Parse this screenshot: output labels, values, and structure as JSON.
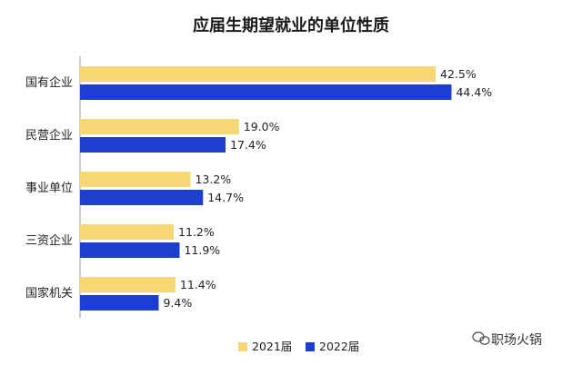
{
  "chart_data": {
    "type": "bar",
    "orientation": "horizontal",
    "title": "应届生期望就业的单位性质",
    "categories": [
      "国有企业",
      "民营企业",
      "事业单位",
      "三资企业",
      "国家机关"
    ],
    "series": [
      {
        "name": "2021届",
        "values": [
          42.5,
          19.0,
          13.2,
          11.2,
          11.4
        ],
        "labels": [
          "42.5%",
          "19.0%",
          "13.2%",
          "11.2%",
          "11.4%"
        ]
      },
      {
        "name": "2022届",
        "values": [
          44.4,
          17.4,
          14.7,
          11.9,
          9.4
        ],
        "labels": [
          "44.4%",
          "17.4%",
          "14.7%",
          "11.9%",
          "9.4%"
        ]
      }
    ],
    "xlim": [
      0,
      50
    ],
    "grid": false,
    "legend": "bottom-center"
  },
  "colors": {
    "series_2021": "#F7D774",
    "series_2022": "#1C3FD1",
    "axis": "#999999"
  },
  "watermark": {
    "text": "职场火锅",
    "icon": "wechat-icon"
  }
}
